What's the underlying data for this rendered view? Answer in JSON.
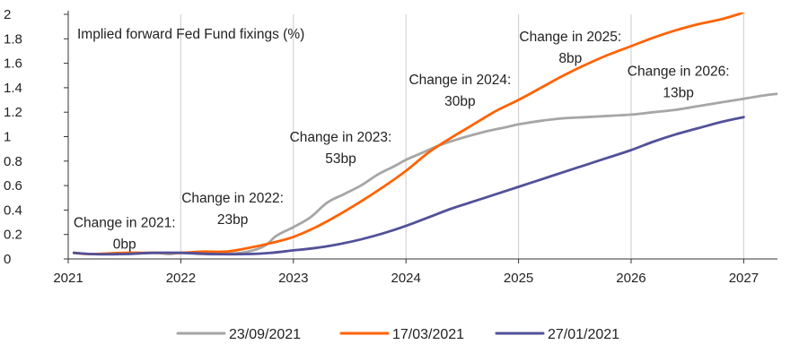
{
  "chart_data": {
    "type": "line",
    "subtitle": "Implied forward Fed Fund fixings (%)",
    "xlabel": "",
    "ylabel": "",
    "xlim": [
      2021.0,
      2027.3
    ],
    "ylim": [
      0,
      2
    ],
    "x_ticks": [
      "2021",
      "2022",
      "2023",
      "2024",
      "2025",
      "2026",
      "2027"
    ],
    "y_ticks": [
      "0",
      "0.2",
      "0.4",
      "0.6",
      "0.8",
      "1",
      "1.2",
      "1.4",
      "1.6",
      "1.8",
      "2"
    ],
    "grid": "vertical",
    "legend_position": "bottom",
    "series": [
      {
        "name": "23/09/2021",
        "color": "#a6a6a6",
        "x": [
          2021.05,
          2021.2,
          2021.5,
          2021.75,
          2021.9,
          2022.0,
          2022.2,
          2022.4,
          2022.6,
          2022.75,
          2022.85,
          2023.0,
          2023.15,
          2023.3,
          2023.45,
          2023.6,
          2023.75,
          2023.9,
          2024.0,
          2024.15,
          2024.3,
          2024.5,
          2024.7,
          2024.9,
          2025.0,
          2025.2,
          2025.4,
          2025.6,
          2025.8,
          2026.0,
          2026.2,
          2026.4,
          2026.6,
          2026.8,
          2027.0,
          2027.2,
          2027.3
        ],
        "y": [
          0.05,
          0.04,
          0.04,
          0.05,
          0.04,
          0.05,
          0.04,
          0.04,
          0.06,
          0.11,
          0.19,
          0.26,
          0.34,
          0.46,
          0.53,
          0.6,
          0.69,
          0.76,
          0.81,
          0.87,
          0.93,
          0.99,
          1.04,
          1.08,
          1.1,
          1.13,
          1.15,
          1.16,
          1.17,
          1.18,
          1.2,
          1.22,
          1.25,
          1.28,
          1.31,
          1.34,
          1.35
        ]
      },
      {
        "name": "17/03/2021",
        "color": "#ff6200",
        "x": [
          2021.05,
          2021.2,
          2021.5,
          2021.75,
          2022.0,
          2022.2,
          2022.4,
          2022.6,
          2022.8,
          2023.0,
          2023.2,
          2023.4,
          2023.6,
          2023.8,
          2024.0,
          2024.2,
          2024.4,
          2024.6,
          2024.8,
          2025.0,
          2025.2,
          2025.4,
          2025.6,
          2025.8,
          2026.0,
          2026.2,
          2026.4,
          2026.6,
          2026.8,
          2026.95,
          2027.0
        ],
        "y": [
          0.05,
          0.04,
          0.05,
          0.05,
          0.05,
          0.06,
          0.06,
          0.09,
          0.13,
          0.18,
          0.26,
          0.36,
          0.47,
          0.59,
          0.72,
          0.87,
          0.99,
          1.1,
          1.21,
          1.3,
          1.4,
          1.5,
          1.59,
          1.67,
          1.74,
          1.81,
          1.87,
          1.92,
          1.96,
          2.0,
          2.02
        ]
      },
      {
        "name": "27/01/2021",
        "color": "#525199",
        "x": [
          2021.05,
          2021.2,
          2021.5,
          2021.75,
          2022.0,
          2022.3,
          2022.6,
          2022.8,
          2023.0,
          2023.2,
          2023.4,
          2023.6,
          2023.8,
          2024.0,
          2024.2,
          2024.4,
          2024.6,
          2024.8,
          2025.0,
          2025.2,
          2025.4,
          2025.6,
          2025.8,
          2026.0,
          2026.2,
          2026.4,
          2026.6,
          2026.8,
          2027.0
        ],
        "y": [
          0.05,
          0.04,
          0.04,
          0.05,
          0.05,
          0.04,
          0.04,
          0.05,
          0.07,
          0.09,
          0.12,
          0.16,
          0.21,
          0.27,
          0.34,
          0.41,
          0.47,
          0.53,
          0.59,
          0.65,
          0.71,
          0.77,
          0.83,
          0.89,
          0.96,
          1.02,
          1.07,
          1.12,
          1.16
        ]
      }
    ],
    "annotations": [
      {
        "id": "ann2021",
        "lines": [
          "Change in 2021:",
          "0bp"
        ],
        "at_x": 2021.5,
        "at_y": 0.26
      },
      {
        "id": "ann2022",
        "lines": [
          "Change in 2022:",
          "23bp"
        ],
        "at_x": 2022.46,
        "at_y": 0.46
      },
      {
        "id": "ann2023",
        "lines": [
          "Change in 2023:",
          "53bp"
        ],
        "at_x": 2023.42,
        "at_y": 0.96
      },
      {
        "id": "ann2024",
        "lines": [
          "Change in 2024:",
          "30bp"
        ],
        "at_x": 2024.48,
        "at_y": 1.43
      },
      {
        "id": "ann2025",
        "lines": [
          "Change in 2025:",
          "8bp"
        ],
        "at_x": 2025.46,
        "at_y": 1.78
      },
      {
        "id": "ann2026",
        "lines": [
          "Change in 2026:",
          "13bp"
        ],
        "at_x": 2026.42,
        "at_y": 1.5
      }
    ]
  }
}
